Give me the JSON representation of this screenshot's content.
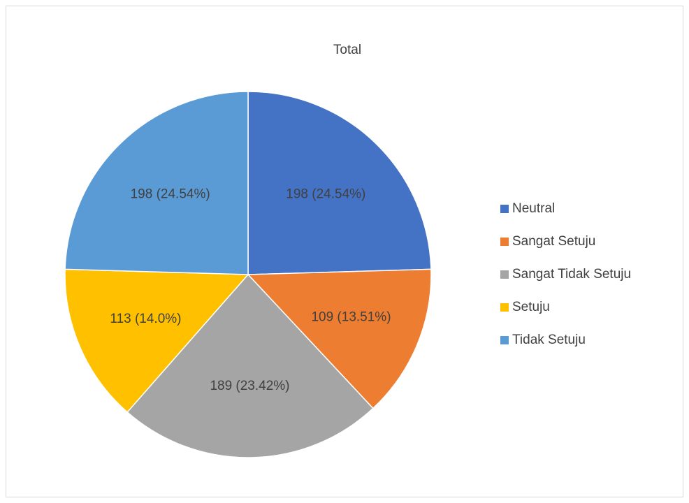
{
  "chart_data": {
    "type": "pie",
    "title": "Total",
    "categories": [
      "Neutral",
      "Sangat Setuju",
      "Sangat Tidak Setuju",
      "Setuju",
      "Tidak Setuju"
    ],
    "values": [
      198,
      109,
      189,
      113,
      198
    ],
    "value_labels": [
      "198 (24.54%)",
      "109 (13.51%)",
      "189 (23.42%)",
      "113 (14.0%)",
      "198 (24.54%)"
    ],
    "colors": [
      "#4472c4",
      "#ed7d31",
      "#a5a5a5",
      "#ffc000",
      "#5b9bd5"
    ],
    "legend": "right"
  }
}
